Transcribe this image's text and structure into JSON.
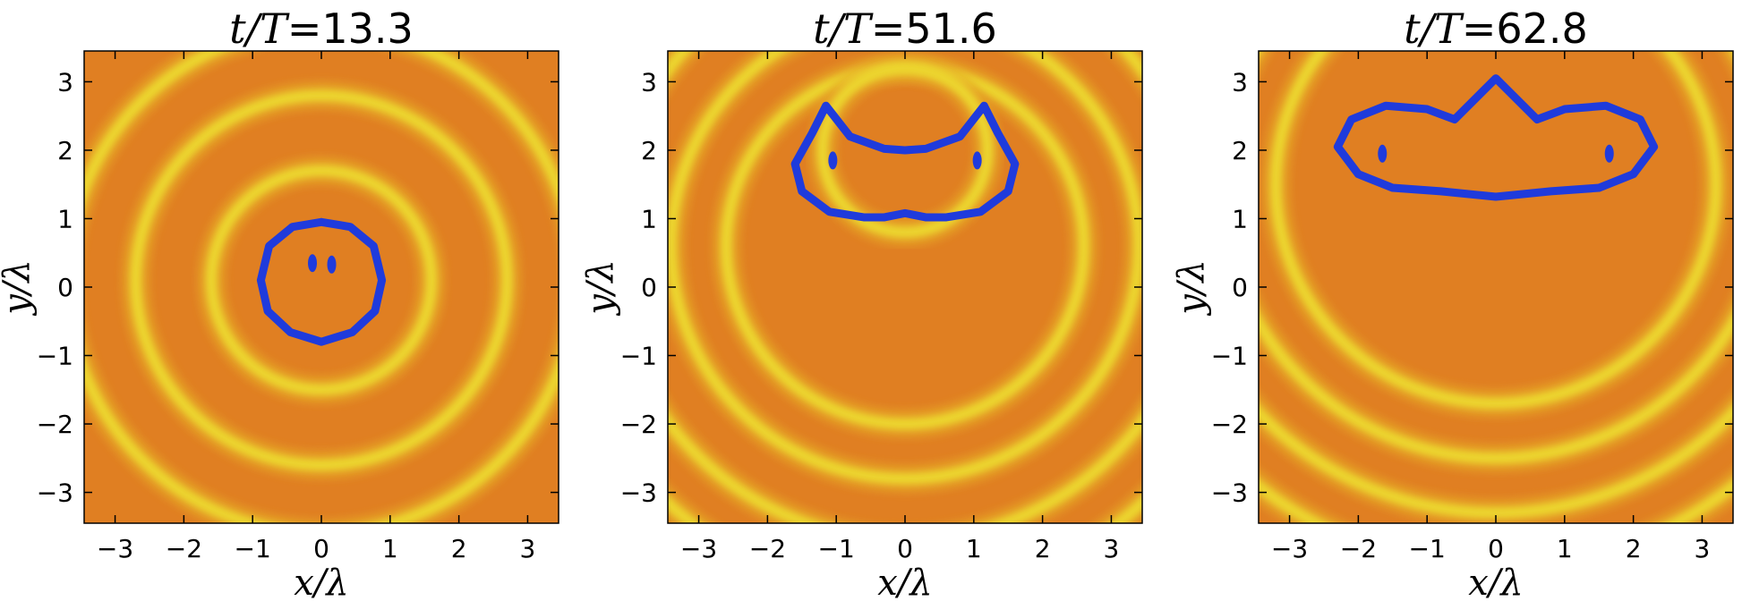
{
  "chart_data": [
    {
      "type": "heatmap",
      "title_prefix": "t/T",
      "title_value": "=13.3",
      "xlabel": "x/λ",
      "ylabel": "y/λ",
      "xlim": [
        -3.45,
        3.45
      ],
      "ylim": [
        -3.45,
        3.45
      ],
      "xticks": [
        -3,
        -2,
        -1,
        0,
        1,
        2,
        3
      ],
      "yticks": [
        -3,
        -2,
        -1,
        0,
        1,
        2,
        3
      ],
      "grid": false,
      "colors": {
        "background": "#e07f22",
        "band": "#ecd52e",
        "contour": "#1f3bdc"
      },
      "wave_pattern": "concentric",
      "wave_rings": [
        {
          "cx": 0,
          "cy": 0.1,
          "r": 2.7
        },
        {
          "cx": 0,
          "cy": 0.1,
          "r": 1.6
        },
        {
          "cx": 0,
          "cy": 0.1,
          "r": 3.7
        }
      ],
      "interface_contour": [
        [
          0,
          0.95
        ],
        [
          0.42,
          0.88
        ],
        [
          0.76,
          0.6
        ],
        [
          0.88,
          0.1
        ],
        [
          0.78,
          -0.35
        ],
        [
          0.45,
          -0.66
        ],
        [
          0,
          -0.8
        ],
        [
          -0.45,
          -0.66
        ],
        [
          -0.78,
          -0.35
        ],
        [
          -0.88,
          0.1
        ],
        [
          -0.76,
          0.6
        ],
        [
          -0.42,
          0.88
        ],
        [
          0,
          0.95
        ]
      ],
      "droplets": [
        [
          -0.13,
          0.35
        ],
        [
          0.15,
          0.33
        ]
      ]
    },
    {
      "type": "heatmap",
      "title_prefix": "t/T",
      "title_value": "=51.6",
      "xlabel": "x/λ",
      "ylabel": "y/λ",
      "xlim": [
        -3.45,
        3.45
      ],
      "ylim": [
        -3.45,
        3.45
      ],
      "xticks": [
        -3,
        -2,
        -1,
        0,
        1,
        2,
        3
      ],
      "yticks": [
        -3,
        -2,
        -1,
        0,
        1,
        2,
        3
      ],
      "grid": false,
      "colors": {
        "background": "#e07f22",
        "band": "#ecd52e",
        "contour": "#1f3bdc"
      },
      "wave_pattern": "arcs",
      "wave_arcs": [
        {
          "cx": 0,
          "cy": 0.6,
          "r": 2.6
        },
        {
          "cx": 0,
          "cy": 0.6,
          "r": 3.4
        },
        {
          "cx": 0,
          "cy": 0.6,
          "r": 4.3
        },
        {
          "cx": 0,
          "cy": 0.6,
          "r": 5.1
        },
        {
          "cx": 0,
          "cy": 2.0,
          "r": 1.2
        }
      ],
      "interface_contour": [
        [
          -1.15,
          2.65
        ],
        [
          -0.8,
          2.2
        ],
        [
          -0.3,
          2.02
        ],
        [
          0,
          2.0
        ],
        [
          0.3,
          2.02
        ],
        [
          0.8,
          2.2
        ],
        [
          1.15,
          2.65
        ],
        [
          1.35,
          2.25
        ],
        [
          1.6,
          1.8
        ],
        [
          1.5,
          1.4
        ],
        [
          1.1,
          1.1
        ],
        [
          0.6,
          1.02
        ],
        [
          0.3,
          1.02
        ],
        [
          0,
          1.08
        ],
        [
          -0.3,
          1.02
        ],
        [
          -0.6,
          1.02
        ],
        [
          -1.1,
          1.1
        ],
        [
          -1.5,
          1.4
        ],
        [
          -1.6,
          1.8
        ],
        [
          -1.35,
          2.25
        ],
        [
          -1.15,
          2.65
        ]
      ],
      "droplets": [
        [
          -1.05,
          1.85
        ],
        [
          1.05,
          1.85
        ]
      ]
    },
    {
      "type": "heatmap",
      "title_prefix": "t/T",
      "title_value": "=62.8",
      "xlabel": "x/λ",
      "ylabel": "y/λ",
      "xlim": [
        -3.45,
        3.45
      ],
      "ylim": [
        -3.45,
        3.45
      ],
      "xticks": [
        -3,
        -2,
        -1,
        0,
        1,
        2,
        3
      ],
      "yticks": [
        -3,
        -2,
        -1,
        0,
        1,
        2,
        3
      ],
      "grid": false,
      "colors": {
        "background": "#e07f22",
        "band": "#ecd52e",
        "contour": "#1f3bdc"
      },
      "wave_pattern": "arcs",
      "wave_arcs": [
        {
          "cx": 0,
          "cy": 1.5,
          "r": 3.2
        },
        {
          "cx": 0,
          "cy": 1.5,
          "r": 4.0
        },
        {
          "cx": 0,
          "cy": 1.5,
          "r": 4.8
        },
        {
          "cx": 0,
          "cy": 1.5,
          "r": 5.6
        }
      ],
      "interface_contour": [
        [
          -2.3,
          2.05
        ],
        [
          -2.1,
          2.45
        ],
        [
          -1.6,
          2.65
        ],
        [
          -1.0,
          2.6
        ],
        [
          -0.6,
          2.45
        ],
        [
          -0.3,
          2.75
        ],
        [
          0,
          3.05
        ],
        [
          0.3,
          2.75
        ],
        [
          0.6,
          2.45
        ],
        [
          1.0,
          2.6
        ],
        [
          1.6,
          2.65
        ],
        [
          2.1,
          2.45
        ],
        [
          2.3,
          2.05
        ],
        [
          2.0,
          1.65
        ],
        [
          1.5,
          1.45
        ],
        [
          0.8,
          1.4
        ],
        [
          0,
          1.32
        ],
        [
          -0.8,
          1.4
        ],
        [
          -1.5,
          1.45
        ],
        [
          -2.0,
          1.65
        ],
        [
          -2.3,
          2.05
        ]
      ],
      "droplets": [
        [
          -1.65,
          1.95
        ],
        [
          1.65,
          1.95
        ]
      ]
    }
  ]
}
